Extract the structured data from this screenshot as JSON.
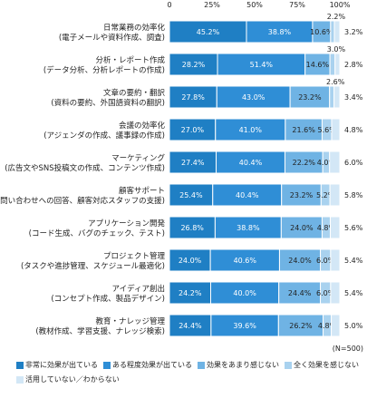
{
  "chart_data": {
    "type": "bar",
    "orientation": "horizontal",
    "stacked": true,
    "title": "",
    "xlabel": "",
    "ylabel": "",
    "xlim": [
      0,
      100
    ],
    "x_ticks": [
      "0",
      "25%",
      "50%",
      "75%",
      "100%"
    ],
    "grid": false,
    "legend_position": "bottom",
    "note": "(N=500)",
    "categories": [
      {
        "title": "日常業務の効率化",
        "sub": "(電子メールや資料作成、調査)"
      },
      {
        "title": "分析・レポート作成",
        "sub": "(データ分析、分析レポートの作成)"
      },
      {
        "title": "文章の要約・翻訳",
        "sub": "(資料の要約、外国語資料の翻訳)"
      },
      {
        "title": "会議の効率化",
        "sub": "(アジェンダの作成、議事録の作成)"
      },
      {
        "title": "マーケティング",
        "sub": "(広告文やSNS投稿文の作成、コンテンツ作成)"
      },
      {
        "title": "顧客サポート",
        "sub": "(問い合わせへの回答、顧客対応スタッフの支援)"
      },
      {
        "title": "アプリケーション開発",
        "sub": "(コード生成、バグのチェック、テスト)"
      },
      {
        "title": "プロジェクト管理",
        "sub": "(タスクや進捗管理、スケジュール最適化)"
      },
      {
        "title": "アイディア創出",
        "sub": "(コンセプト作成、製品デザイン)"
      },
      {
        "title": "教育・ナレッジ管理",
        "sub": "(教材作成、学習支援、ナレッジ検索)"
      }
    ],
    "series": [
      {
        "name": "非常に効果が出ている",
        "color": "#1f7fc4",
        "values": [
          45.2,
          28.2,
          27.8,
          27.0,
          27.4,
          25.4,
          26.8,
          24.0,
          24.2,
          24.4
        ]
      },
      {
        "name": "ある程度効果が出ている",
        "color": "#2f8ed6",
        "values": [
          38.8,
          51.4,
          43.0,
          41.0,
          40.4,
          40.4,
          38.8,
          40.6,
          40.0,
          39.6
        ]
      },
      {
        "name": "効果をあまり感じない",
        "color": "#6fb3e4",
        "values": [
          10.6,
          14.6,
          23.2,
          21.6,
          22.2,
          23.2,
          24.0,
          24.0,
          24.4,
          26.2
        ]
      },
      {
        "name": "全く効果を感じない",
        "color": "#a9d2ef",
        "values": [
          2.2,
          3.0,
          2.6,
          5.6,
          4.0,
          5.2,
          4.8,
          6.0,
          6.0,
          4.8
        ]
      },
      {
        "name": "活用していない／わからない",
        "color": "#d3e7f6",
        "values": [
          3.2,
          2.8,
          3.4,
          4.8,
          6.0,
          5.8,
          5.6,
          5.4,
          5.4,
          5.0
        ]
      }
    ],
    "labels": [
      [
        "45.2%",
        "38.8%",
        "10.6%",
        "2.2%",
        "3.2%"
      ],
      [
        "28.2%",
        "51.4%",
        "14.6%",
        "3.0%",
        "2.8%"
      ],
      [
        "27.8%",
        "43.0%",
        "23.2%",
        "2.6%",
        "3.4%"
      ],
      [
        "27.0%",
        "41.0%",
        "21.6%",
        "5.6%",
        "4.8%"
      ],
      [
        "27.4%",
        "40.4%",
        "22.2%",
        "4.0%",
        "6.0%"
      ],
      [
        "25.4%",
        "40.4%",
        "23.2%",
        "5.2%",
        "5.8%"
      ],
      [
        "26.8%",
        "38.8%",
        "24.0%",
        "4.8%",
        "5.6%"
      ],
      [
        "24.0%",
        "40.6%",
        "24.0%",
        "6.0%",
        "5.4%"
      ],
      [
        "24.2%",
        "40.0%",
        "24.4%",
        "6.0%",
        "5.4%"
      ],
      [
        "24.4%",
        "39.6%",
        "26.2%",
        "4.8%",
        "5.0%"
      ]
    ],
    "label_above_segment": [
      true,
      true,
      true,
      false,
      false,
      false,
      false,
      false,
      false,
      false
    ]
  }
}
